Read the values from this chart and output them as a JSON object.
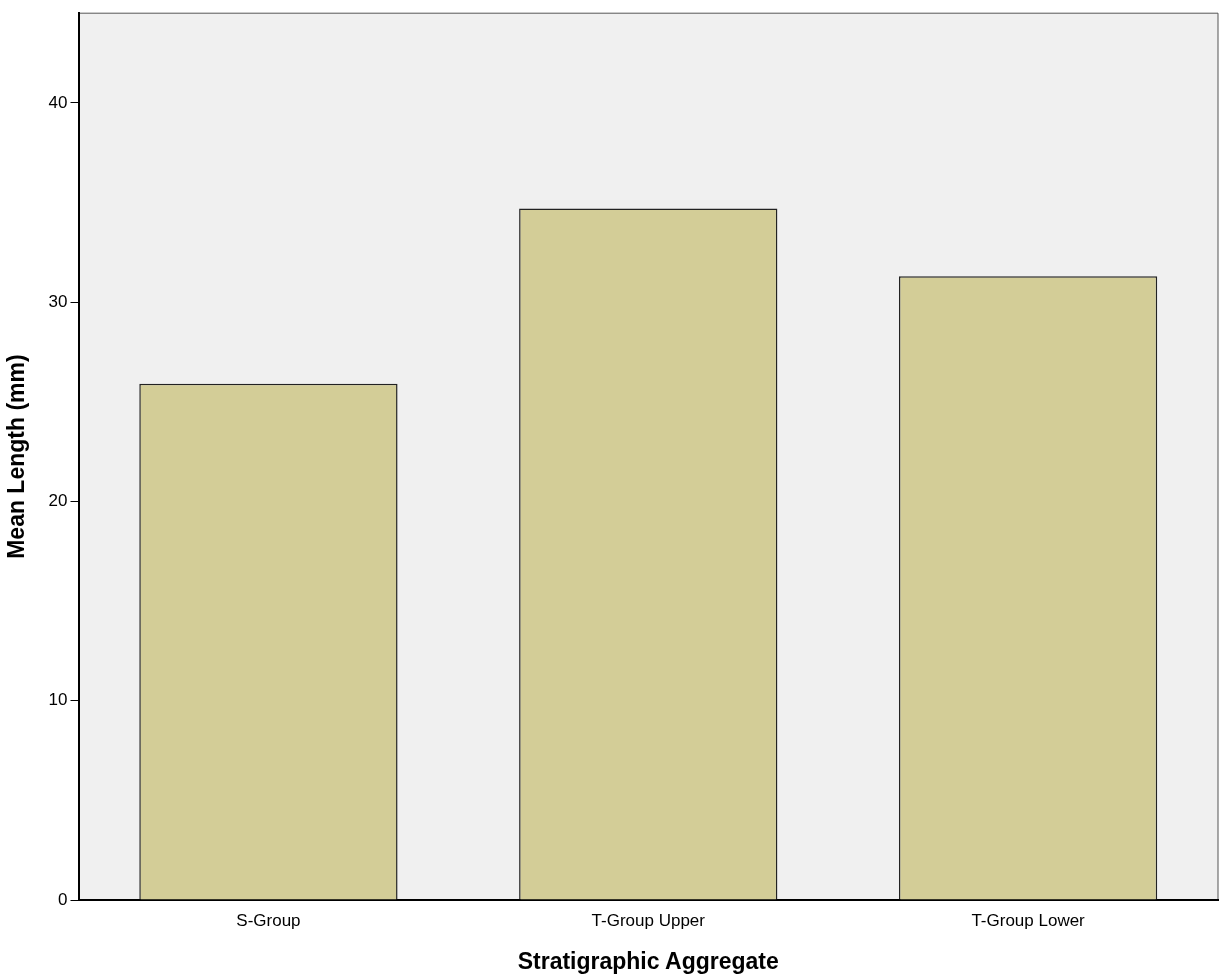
{
  "chart_data": {
    "type": "bar",
    "xlabel": "Stratigraphic Aggregate",
    "ylabel": "Mean Length (mm)",
    "categories": [
      "S-Group",
      "T-Group Upper",
      "T-Group Lower"
    ],
    "values": [
      25.9,
      34.7,
      31.3
    ],
    "color": "#d3cd97",
    "ylim": [
      0,
      44.5
    ],
    "yticks": [
      0,
      10,
      20,
      30,
      40
    ],
    "grid": false,
    "legend": false
  }
}
